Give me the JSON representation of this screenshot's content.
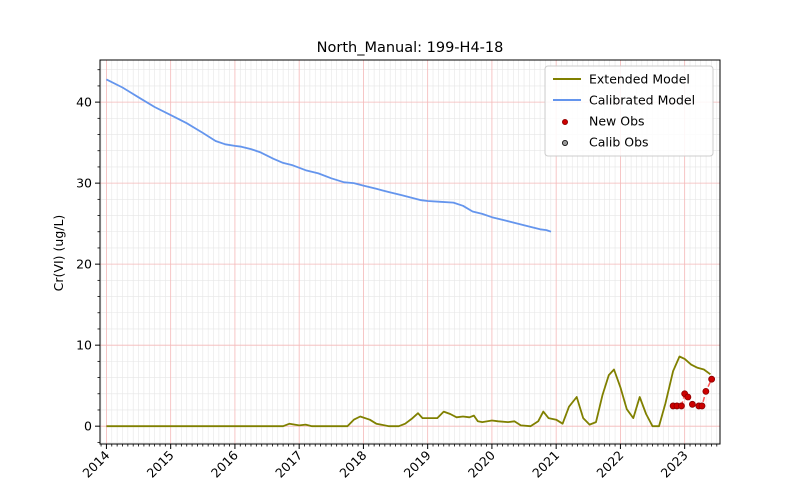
{
  "chart_data": {
    "type": "line",
    "title": "North_Manual: 199-H4-18",
    "xlabel": "",
    "ylabel": "Cr(VI) (ug/L)",
    "xlim": [
      2013.9,
      2023.55
    ],
    "ylim": [
      -2.2,
      45.2
    ],
    "x_ticks": [
      2014,
      2015,
      2016,
      2017,
      2018,
      2019,
      2020,
      2021,
      2022,
      2023
    ],
    "x_tick_labels": [
      "2014",
      "2015",
      "2016",
      "2017",
      "2018",
      "2019",
      "2020",
      "2021",
      "2022",
      "2023"
    ],
    "y_ticks": [
      0,
      10,
      20,
      30,
      40
    ],
    "y_tick_labels": [
      "0",
      "10",
      "20",
      "30",
      "40"
    ],
    "grid": true,
    "legend_position": "top-right",
    "legend": [
      {
        "label": "Extended Model",
        "kind": "line",
        "color": "#808000"
      },
      {
        "label": "Calibrated Model",
        "kind": "line",
        "color": "#6495ed"
      },
      {
        "label": "New Obs",
        "kind": "marker",
        "color": "#cc0000",
        "edge": "#8b0000"
      },
      {
        "label": "Calib Obs",
        "kind": "marker",
        "color": "#999999",
        "edge": "#000000"
      }
    ],
    "series": [
      {
        "name": "Calibrated Model",
        "color": "#6495ed",
        "x": [
          2014.0,
          2014.25,
          2014.5,
          2014.75,
          2015.0,
          2015.25,
          2015.5,
          2015.7,
          2015.85,
          2016.0,
          2016.1,
          2016.25,
          2016.4,
          2016.6,
          2016.75,
          2016.9,
          2017.1,
          2017.3,
          2017.5,
          2017.7,
          2017.85,
          2018.0,
          2018.2,
          2018.4,
          2018.6,
          2018.75,
          2018.9,
          2019.0,
          2019.2,
          2019.4,
          2019.55,
          2019.7,
          2019.85,
          2020.0,
          2020.2,
          2020.4,
          2020.6,
          2020.75,
          2020.85,
          2020.92
        ],
        "y": [
          42.8,
          41.8,
          40.6,
          39.4,
          38.4,
          37.4,
          36.2,
          35.2,
          34.8,
          34.6,
          34.5,
          34.2,
          33.8,
          33.0,
          32.5,
          32.2,
          31.6,
          31.2,
          30.6,
          30.1,
          30.0,
          29.7,
          29.3,
          28.9,
          28.5,
          28.2,
          27.9,
          27.8,
          27.7,
          27.6,
          27.2,
          26.5,
          26.2,
          25.8,
          25.4,
          25.0,
          24.6,
          24.3,
          24.2,
          24.0
        ]
      },
      {
        "name": "Extended Model",
        "color": "#808000",
        "x": [
          2014.0,
          2015.0,
          2015.9,
          2016.25,
          2016.5,
          2016.75,
          2016.85,
          2017.0,
          2017.1,
          2017.2,
          2017.5,
          2017.75,
          2017.85,
          2017.95,
          2018.1,
          2018.2,
          2018.4,
          2018.55,
          2018.65,
          2018.75,
          2018.85,
          2018.92,
          2019.0,
          2019.15,
          2019.25,
          2019.35,
          2019.45,
          2019.55,
          2019.65,
          2019.72,
          2019.78,
          2019.85,
          2020.0,
          2020.1,
          2020.25,
          2020.35,
          2020.45,
          2020.6,
          2020.72,
          2020.8,
          2020.88,
          2021.0,
          2021.1,
          2021.2,
          2021.32,
          2021.42,
          2021.52,
          2021.62,
          2021.72,
          2021.82,
          2021.9,
          2022.0,
          2022.1,
          2022.2,
          2022.3,
          2022.4,
          2022.5,
          2022.6,
          2022.7,
          2022.82,
          2022.92,
          2023.0,
          2023.1,
          2023.2,
          2023.3,
          2023.4
        ],
        "y": [
          0.0,
          0.0,
          0.0,
          0.0,
          0.0,
          0.0,
          0.3,
          0.1,
          0.2,
          0.0,
          0.0,
          0.0,
          0.8,
          1.2,
          0.8,
          0.3,
          0.0,
          0.0,
          0.3,
          0.9,
          1.6,
          1.0,
          1.0,
          1.0,
          1.8,
          1.5,
          1.1,
          1.2,
          1.1,
          1.3,
          0.6,
          0.5,
          0.7,
          0.6,
          0.5,
          0.6,
          0.1,
          0.0,
          0.6,
          1.8,
          1.0,
          0.8,
          0.3,
          2.4,
          3.6,
          1.0,
          0.2,
          0.5,
          3.8,
          6.3,
          7.0,
          4.8,
          2.1,
          1.0,
          3.6,
          1.5,
          0.0,
          0.0,
          2.8,
          6.8,
          8.6,
          8.3,
          7.6,
          7.2,
          7.0,
          6.4
        ]
      },
      {
        "name": "New Obs",
        "color": "#cc0000",
        "x": [
          2022.82,
          2022.88,
          2022.95,
          2023.0,
          2023.05,
          2023.12,
          2023.22,
          2023.27,
          2023.33,
          2023.42
        ],
        "y": [
          2.5,
          2.5,
          2.5,
          4.0,
          3.6,
          2.7,
          2.5,
          2.5,
          4.3,
          5.8
        ]
      }
    ]
  }
}
